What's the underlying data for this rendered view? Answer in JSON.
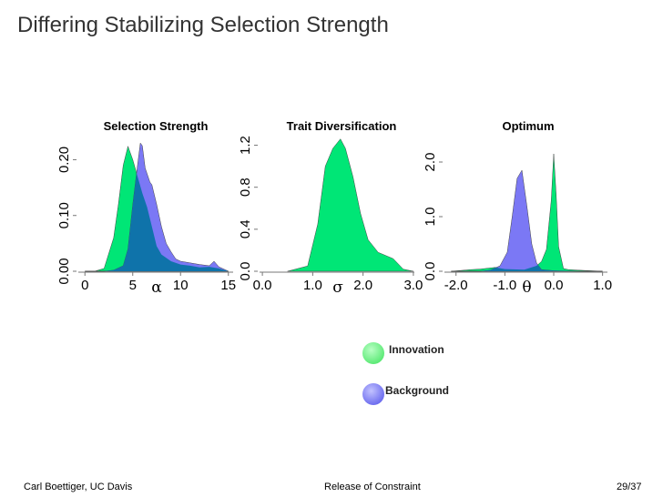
{
  "slide": {
    "title": "Differing Stabilizing Selection Strength"
  },
  "footer": {
    "left": "Carl Boettiger, UC Davis",
    "center": "Release of Constraint",
    "right": "29/37"
  },
  "colors": {
    "innovation": "#00e676",
    "background": "#7b78f5",
    "overlap": "#0f73aa"
  },
  "legend": [
    {
      "name": "Innovation",
      "color": "#74f288"
    },
    {
      "name": "Background",
      "color": "#7f7ff2"
    }
  ],
  "chart_data": [
    {
      "type": "area",
      "title": "Selection Strength",
      "xlabel": "α",
      "ylabel": "",
      "xlim": [
        -0.5,
        15.5
      ],
      "ylim": [
        0,
        0.2448
      ],
      "xticks": [
        0,
        5,
        10,
        15
      ],
      "xticklabels": [
        "0",
        "5",
        "10",
        "15"
      ],
      "yticks": [
        0,
        0.1,
        0.2
      ],
      "yticklabels": [
        "0.00",
        "0.10",
        "0.20"
      ],
      "grid": false,
      "series": [
        {
          "name": "Innovation",
          "x": [
            0,
            1,
            2,
            3,
            3.5,
            4,
            4.5,
            5,
            5.5,
            6,
            6.5,
            7,
            7.5,
            8,
            9,
            10,
            11,
            12,
            13,
            14,
            15
          ],
          "values": [
            0,
            0,
            0.005,
            0.06,
            0.12,
            0.19,
            0.224,
            0.2,
            0.17,
            0.14,
            0.115,
            0.08,
            0.045,
            0.03,
            0.018,
            0.012,
            0.01,
            0.007,
            0.008,
            0.005,
            0
          ]
        },
        {
          "name": "Background",
          "x": [
            0,
            2,
            3,
            4,
            4.5,
            5,
            5.5,
            5.8,
            6,
            6.3,
            6.8,
            7,
            7.5,
            8,
            8.5,
            9,
            9.5,
            10,
            11,
            12,
            13,
            13.5,
            14,
            14.5,
            15
          ],
          "values": [
            0,
            0,
            0.002,
            0.01,
            0.04,
            0.12,
            0.19,
            0.23,
            0.225,
            0.185,
            0.16,
            0.155,
            0.12,
            0.08,
            0.05,
            0.035,
            0.022,
            0.018,
            0.015,
            0.012,
            0.01,
            0.018,
            0.008,
            0.004,
            0
          ]
        }
      ]
    },
    {
      "type": "area",
      "title": "Trait Diversification",
      "xlabel": "σ",
      "ylabel": "",
      "xlim": [
        -0.02,
        3.02
      ],
      "ylim": [
        0,
        1.3
      ],
      "xticks": [
        0,
        1,
        2,
        3
      ],
      "xticklabels": [
        "0.0",
        "1.0",
        "2.0",
        "3.0"
      ],
      "yticks": [
        0,
        0.4,
        0.8,
        1.2
      ],
      "yticklabels": [
        "0.0",
        "0.4",
        "0.8",
        "1.2"
      ],
      "grid": false,
      "series": [
        {
          "name": "Innovation",
          "x": [
            0.5,
            0.9,
            1.1,
            1.25,
            1.4,
            1.55,
            1.65,
            1.8,
            1.95,
            2.1,
            2.3,
            2.6,
            2.8,
            3.0
          ],
          "values": [
            0,
            0.05,
            0.45,
            1.0,
            1.17,
            1.26,
            1.17,
            0.9,
            0.55,
            0.3,
            0.18,
            0.12,
            0.02,
            0
          ]
        }
      ]
    },
    {
      "type": "area",
      "title": "Optimum",
      "xlabel": "θ",
      "ylabel": "",
      "xlim": [
        -2.2,
        1.1
      ],
      "ylim": [
        0,
        2.5
      ],
      "xticks": [
        -2,
        -1,
        0,
        1
      ],
      "xticklabels": [
        "-2.0",
        "-1.0",
        "0.0",
        "1.0"
      ],
      "yticks": [
        0,
        1,
        2
      ],
      "yticklabels": [
        "0.0",
        "1.0",
        "2.0"
      ],
      "grid": false,
      "series": [
        {
          "name": "Innovation",
          "x": [
            -2.1,
            -1.7,
            -1.5,
            -1.2,
            -1.0,
            -0.6,
            -0.35,
            -0.25,
            -0.15,
            -0.05,
            0.0,
            0.05,
            0.1,
            0.2,
            0.3,
            0.5,
            1.0
          ],
          "values": [
            0,
            0.03,
            0.04,
            0.07,
            0.04,
            0.03,
            0.1,
            0.18,
            0.4,
            1.3,
            2.15,
            1.4,
            0.45,
            0.05,
            0.03,
            0.02,
            0
          ]
        },
        {
          "name": "Background",
          "x": [
            -2.1,
            -1.5,
            -1.3,
            -1.1,
            -0.95,
            -0.85,
            -0.75,
            -0.65,
            -0.55,
            -0.45,
            -0.35,
            -0.25,
            0.0,
            0.5,
            1.0
          ],
          "values": [
            0,
            0,
            0.02,
            0.1,
            0.35,
            1.0,
            1.7,
            1.85,
            1.2,
            0.5,
            0.15,
            0.03,
            0.01,
            0,
            0
          ]
        }
      ]
    }
  ]
}
